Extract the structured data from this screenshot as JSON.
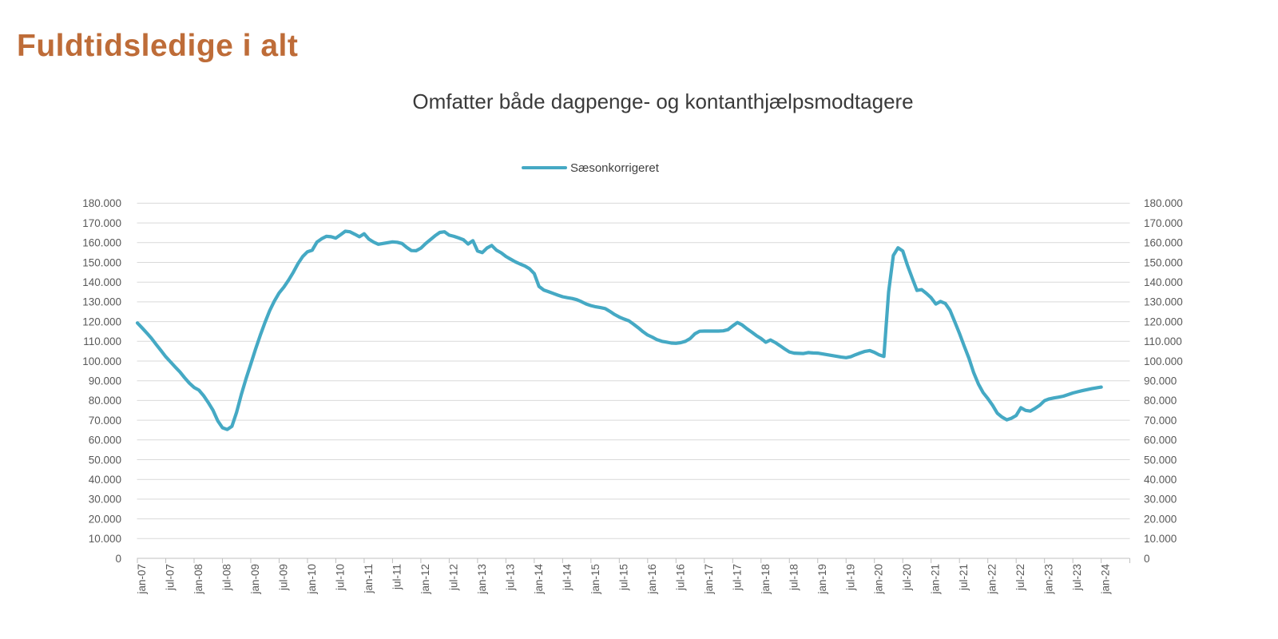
{
  "page_title": "Fuldtidsledige i alt",
  "chart": {
    "subtitle": "Omfatter både dagpenge- og kontanthjælpsmodtagere",
    "legend": [
      {
        "label": "Sæsonkorrigeret",
        "color": "#45A9C4"
      }
    ]
  },
  "colors": {
    "title_text": "#BE6C38",
    "subtitle_text": "#3A3A3A",
    "legend_text": "#404040",
    "line": "#45A9C4",
    "gridline": "#D9D9D9",
    "axis_line": "#BFBFBF",
    "axis_text": "#595959",
    "background": "#FFFFFF"
  },
  "chart_data": {
    "type": "line",
    "title": "Omfatter både dagpenge- og kontanthjælpsmodtagere",
    "legend_position": "top",
    "grid": true,
    "x_unit": "month",
    "x_start": "jan-07",
    "x_end": "jan-24",
    "x_tick_labels": [
      "jan-07",
      "jul-07",
      "jan-08",
      "jul-08",
      "jan-09",
      "jul-09",
      "jan-10",
      "jul-10",
      "jan-11",
      "jul-11",
      "jan-12",
      "jul-12",
      "jan-13",
      "jul-13",
      "jan-14",
      "jul-14",
      "jan-15",
      "jul-15",
      "jan-16",
      "jul-16",
      "jan-17",
      "jul-17",
      "jan-18",
      "jul-18",
      "jan-19",
      "jul-19",
      "jan-20",
      "jul-20",
      "jan-21",
      "jul-21",
      "jan-22",
      "jul-22",
      "jan-23",
      "jul-23",
      "jan-24"
    ],
    "y_axis": {
      "min": 0,
      "max": 180000,
      "step": 10000,
      "tick_labels_top_down": [
        "180.000",
        "170.000",
        "160.000",
        "150.000",
        "140.000",
        "130.000",
        "120.000",
        "110.000",
        "100.000",
        "90.000",
        "80.000",
        "70.000",
        "60.000",
        "50.000",
        "40.000",
        "30.000",
        "20.000",
        "10.000",
        "0"
      ],
      "mirrored_right": true
    },
    "series": [
      {
        "name": "Sæsonkorrigeret",
        "color": "#45A9C4",
        "values": [
          119300,
          116800,
          114200,
          111500,
          108300,
          105300,
          102200,
          99600,
          97000,
          94500,
          91500,
          88800,
          86600,
          85300,
          82500,
          79000,
          75100,
          69700,
          66200,
          65300,
          66900,
          74000,
          83000,
          91000,
          98500,
          106000,
          113000,
          119500,
          125500,
          130400,
          134500,
          137500,
          141000,
          145000,
          149400,
          153000,
          155400,
          156200,
          160300,
          162000,
          163200,
          163000,
          162300,
          164000,
          165800,
          165500,
          164300,
          163000,
          164500,
          161800,
          160300,
          159200,
          159600,
          160000,
          160400,
          160200,
          159600,
          157600,
          156000,
          155900,
          157200,
          159500,
          161500,
          163500,
          165200,
          165500,
          163800,
          163200,
          162400,
          161500,
          159300,
          161000,
          155800,
          155000,
          157300,
          158600,
          156200,
          154800,
          153000,
          151600,
          150300,
          149200,
          148200,
          146800,
          144300,
          137800,
          136000,
          135200,
          134300,
          133400,
          132600,
          132100,
          131700,
          131100,
          130100,
          128900,
          128100,
          127500,
          127100,
          126600,
          125200,
          123600,
          122300,
          121300,
          120400,
          118700,
          116900,
          114900,
          113200,
          112100,
          110800,
          110000,
          109600,
          109100,
          109000,
          109300,
          110000,
          111400,
          113800,
          115100,
          115200,
          115200,
          115200,
          115200,
          115300,
          115900,
          117800,
          119500,
          118300,
          116400,
          114700,
          112900,
          111400,
          109500,
          110700,
          109400,
          107800,
          106100,
          104600,
          104000,
          103900,
          103800,
          104300,
          104100,
          104000,
          103600,
          103200,
          102800,
          102400,
          102000,
          101700,
          102200,
          103200,
          104100,
          104900,
          105300,
          104400,
          103100,
          102300,
          135000,
          153500,
          157400,
          155800,
          148500,
          142000,
          135800,
          136200,
          134300,
          132100,
          128900,
          130200,
          129200,
          125700,
          119900,
          114000,
          107600,
          101500,
          94100,
          88400,
          84000,
          81000,
          77600,
          73600,
          71600,
          70200,
          71000,
          72400,
          76300,
          75000,
          74600,
          76000,
          77600,
          79900,
          80800,
          81300,
          81700,
          82200,
          83000,
          83800,
          84400,
          85000,
          85500,
          86000,
          86400,
          86800
        ]
      }
    ]
  }
}
